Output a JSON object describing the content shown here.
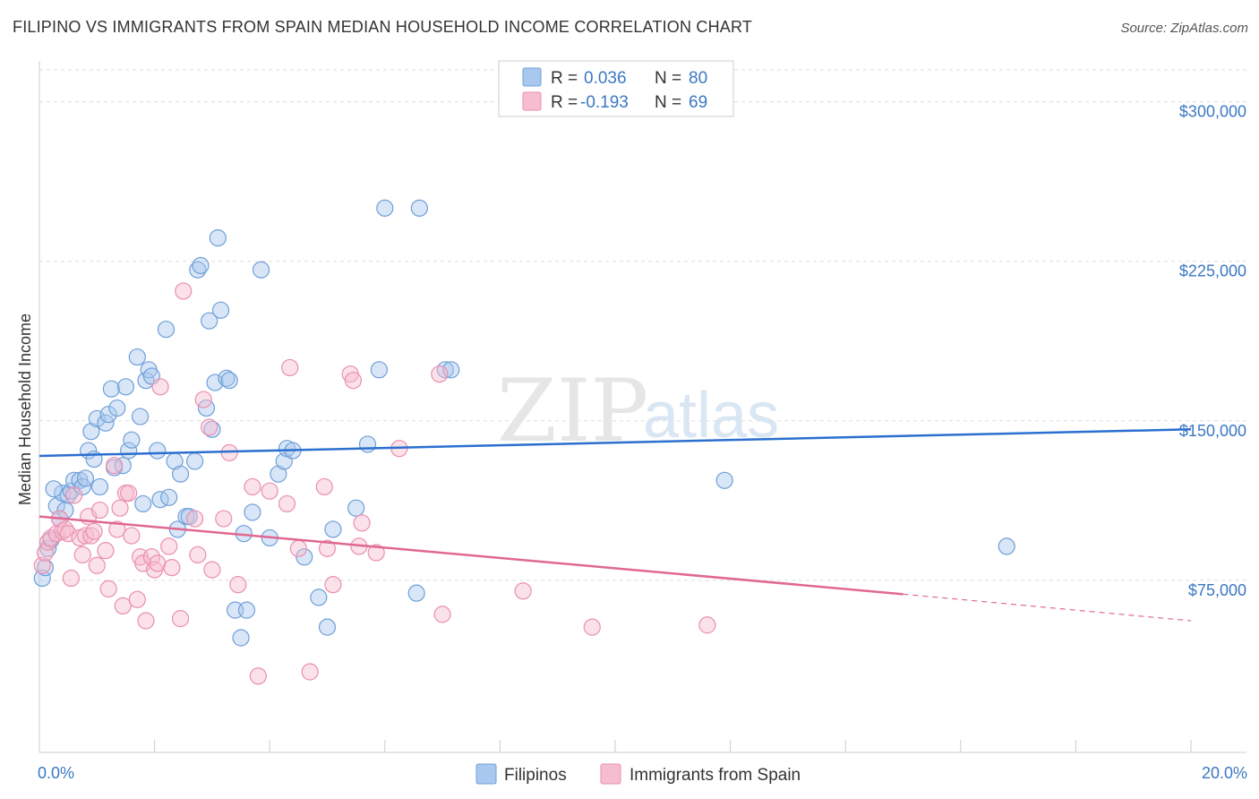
{
  "title": "FILIPINO VS IMMIGRANTS FROM SPAIN MEDIAN HOUSEHOLD INCOME CORRELATION CHART",
  "source": "Source: ZipAtlas.com",
  "watermark": {
    "zip": "ZIP",
    "atlas": "atlas"
  },
  "colors": {
    "blue_fill": "#a9c8ee",
    "blue_stroke": "#6f9fd8",
    "blue_line": "#2b6fcf",
    "pink_fill": "#f6bccf",
    "pink_stroke": "#ea8fb0",
    "pink_line": "#e06892",
    "axis_text": "#3b78c3",
    "grid": "#dddddd"
  },
  "legend": {
    "rows": [
      {
        "r_label": "R =",
        "r_value": "0.036",
        "n_label": "N =",
        "n_value": "80"
      },
      {
        "r_label": "R =",
        "r_value": "-0.193",
        "n_label": "N =",
        "n_value": "69"
      }
    ]
  },
  "bottom_legend": [
    "Filipinos",
    "Immigrants from Spain"
  ],
  "chart_data": {
    "type": "scatter",
    "title": "FILIPINO VS IMMIGRANTS FROM SPAIN MEDIAN HOUSEHOLD INCOME CORRELATION CHART",
    "xlabel": "",
    "ylabel": "Median Household Income",
    "xlim": [
      0,
      20
    ],
    "ylim": [
      0,
      315000
    ],
    "x_tick_labels": [
      "0.0%",
      "20.0%"
    ],
    "y_ticks": [
      75000,
      150000,
      225000,
      300000
    ],
    "y_tick_labels": [
      "$75,000",
      "$150,000",
      "$225,000",
      "$300,000"
    ],
    "grid": "horizontal dashed",
    "legend_position": "top-center",
    "series": [
      {
        "name": "Filipinos",
        "r": 0.036,
        "n": 80,
        "trend": {
          "x": [
            0,
            20
          ],
          "y": [
            133500,
            146000
          ]
        },
        "points": [
          [
            0.05,
            76000
          ],
          [
            0.1,
            81000
          ],
          [
            0.15,
            90000
          ],
          [
            0.2,
            94000
          ],
          [
            0.3,
            110000
          ],
          [
            0.35,
            104000
          ],
          [
            0.4,
            116000
          ],
          [
            0.5,
            115000
          ],
          [
            0.55,
            117000
          ],
          [
            0.6,
            122000
          ],
          [
            0.7,
            122000
          ],
          [
            0.75,
            119000
          ],
          [
            0.8,
            123000
          ],
          [
            0.85,
            136000
          ],
          [
            0.9,
            145000
          ],
          [
            0.95,
            132000
          ],
          [
            1.0,
            151000
          ],
          [
            1.05,
            119000
          ],
          [
            1.15,
            149000
          ],
          [
            1.2,
            153000
          ],
          [
            1.25,
            165000
          ],
          [
            1.3,
            128000
          ],
          [
            1.35,
            156000
          ],
          [
            1.45,
            129000
          ],
          [
            1.5,
            166000
          ],
          [
            1.55,
            136000
          ],
          [
            1.6,
            141000
          ],
          [
            1.7,
            180000
          ],
          [
            1.75,
            152000
          ],
          [
            1.8,
            111000
          ],
          [
            1.85,
            169000
          ],
          [
            1.9,
            174000
          ],
          [
            1.95,
            171000
          ],
          [
            2.05,
            136000
          ],
          [
            2.1,
            113000
          ],
          [
            2.2,
            193000
          ],
          [
            2.25,
            114000
          ],
          [
            2.35,
            131000
          ],
          [
            2.4,
            99000
          ],
          [
            2.45,
            125000
          ],
          [
            2.55,
            105000
          ],
          [
            2.6,
            105000
          ],
          [
            2.7,
            131000
          ],
          [
            2.75,
            221000
          ],
          [
            2.8,
            223000
          ],
          [
            2.9,
            156000
          ],
          [
            2.95,
            197000
          ],
          [
            3.0,
            146000
          ],
          [
            3.05,
            168000
          ],
          [
            3.1,
            236000
          ],
          [
            3.15,
            202000
          ],
          [
            3.25,
            170000
          ],
          [
            3.3,
            169000
          ],
          [
            3.4,
            61000
          ],
          [
            3.5,
            48000
          ],
          [
            3.55,
            97000
          ],
          [
            3.6,
            61000
          ],
          [
            3.7,
            107000
          ],
          [
            3.85,
            221000
          ],
          [
            4.0,
            95000
          ],
          [
            4.15,
            125000
          ],
          [
            4.25,
            131000
          ],
          [
            4.3,
            137000
          ],
          [
            4.4,
            136000
          ],
          [
            4.6,
            86000
          ],
          [
            4.85,
            67000
          ],
          [
            5.0,
            53000
          ],
          [
            5.1,
            99000
          ],
          [
            5.5,
            109000
          ],
          [
            5.7,
            139000
          ],
          [
            5.9,
            174000
          ],
          [
            6.0,
            250000
          ],
          [
            6.55,
            69000
          ],
          [
            6.6,
            250000
          ],
          [
            7.05,
            174000
          ],
          [
            7.15,
            174000
          ],
          [
            11.9,
            122000
          ],
          [
            16.8,
            91000
          ],
          [
            0.25,
            118000
          ],
          [
            0.45,
            108000
          ]
        ]
      },
      {
        "name": "Immigrants from Spain",
        "r": -0.193,
        "n": 69,
        "trend": {
          "x": [
            0,
            15
          ],
          "y": [
            105000,
            68500
          ]
        },
        "trend_dashed": {
          "x": [
            15,
            20
          ],
          "y": [
            68500,
            56000
          ]
        },
        "points": [
          [
            0.05,
            82000
          ],
          [
            0.1,
            88000
          ],
          [
            0.15,
            93000
          ],
          [
            0.2,
            95000
          ],
          [
            0.3,
            97000
          ],
          [
            0.35,
            104000
          ],
          [
            0.4,
            98000
          ],
          [
            0.45,
            99000
          ],
          [
            0.5,
            97000
          ],
          [
            0.55,
            76000
          ],
          [
            0.6,
            115000
          ],
          [
            0.7,
            95000
          ],
          [
            0.75,
            87000
          ],
          [
            0.8,
            96000
          ],
          [
            0.85,
            105000
          ],
          [
            0.9,
            96000
          ],
          [
            0.95,
            98000
          ],
          [
            1.0,
            82000
          ],
          [
            1.05,
            108000
          ],
          [
            1.15,
            89000
          ],
          [
            1.2,
            71000
          ],
          [
            1.3,
            129000
          ],
          [
            1.35,
            99000
          ],
          [
            1.4,
            109000
          ],
          [
            1.45,
            63000
          ],
          [
            1.5,
            116000
          ],
          [
            1.55,
            116000
          ],
          [
            1.6,
            96000
          ],
          [
            1.7,
            66000
          ],
          [
            1.75,
            86000
          ],
          [
            1.8,
            83000
          ],
          [
            1.85,
            56000
          ],
          [
            1.95,
            86000
          ],
          [
            2.0,
            80000
          ],
          [
            2.05,
            83000
          ],
          [
            2.1,
            166000
          ],
          [
            2.25,
            91000
          ],
          [
            2.3,
            81000
          ],
          [
            2.45,
            57000
          ],
          [
            2.5,
            211000
          ],
          [
            2.7,
            104000
          ],
          [
            2.75,
            87000
          ],
          [
            2.85,
            160000
          ],
          [
            2.95,
            147000
          ],
          [
            3.0,
            80000
          ],
          [
            3.2,
            104000
          ],
          [
            3.3,
            135000
          ],
          [
            3.45,
            73000
          ],
          [
            3.7,
            119000
          ],
          [
            3.8,
            30000
          ],
          [
            4.0,
            117000
          ],
          [
            4.3,
            111000
          ],
          [
            4.35,
            175000
          ],
          [
            4.5,
            90000
          ],
          [
            4.7,
            32000
          ],
          [
            4.95,
            119000
          ],
          [
            5.0,
            90000
          ],
          [
            5.1,
            73000
          ],
          [
            5.4,
            172000
          ],
          [
            5.45,
            169000
          ],
          [
            5.55,
            91000
          ],
          [
            5.6,
            102000
          ],
          [
            5.85,
            88000
          ],
          [
            6.25,
            137000
          ],
          [
            6.95,
            172000
          ],
          [
            7.0,
            59000
          ],
          [
            8.4,
            70000
          ],
          [
            9.6,
            53000
          ],
          [
            11.6,
            54000
          ]
        ]
      }
    ]
  }
}
